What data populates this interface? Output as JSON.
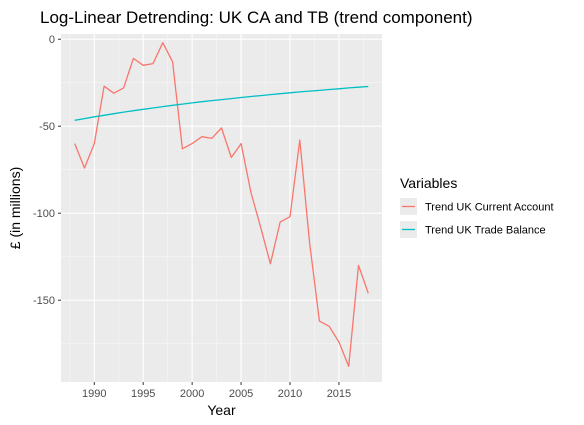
{
  "chart_data": {
    "type": "line",
    "title": "Log-Linear Detrending: UK CA and TB (trend component)",
    "xlabel": "Year",
    "ylabel": "£ (in millions)",
    "xlim": [
      1986.6,
      2019.4
    ],
    "ylim": [
      -197,
      3
    ],
    "x_ticks": [
      1990,
      1995,
      2000,
      2005,
      2010,
      2015
    ],
    "y_ticks": [
      0,
      -50,
      -100,
      -150
    ],
    "x_tick_labels": [
      "1990",
      "1995",
      "2000",
      "2005",
      "2010",
      "2015"
    ],
    "y_tick_labels": [
      "0",
      "-50",
      "-100",
      "-150"
    ],
    "grid": true,
    "legend": {
      "title": "Variables",
      "position": "right"
    },
    "x": [
      1988,
      1989,
      1990,
      1991,
      1992,
      1993,
      1994,
      1995,
      1996,
      1997,
      1998,
      1999,
      2000,
      2001,
      2002,
      2003,
      2004,
      2005,
      2006,
      2007,
      2008,
      2009,
      2010,
      2011,
      2012,
      2013,
      2014,
      2015,
      2016,
      2017,
      2018
    ],
    "series": [
      {
        "name": "Trend UK Current Account",
        "color": "#F8766D",
        "values": [
          -60,
          -74,
          -60,
          -27,
          -31,
          -28,
          -11,
          -15,
          -14,
          -2,
          -13,
          -63,
          -60,
          -56,
          -57,
          -51,
          -68,
          -60,
          -88,
          -108,
          -129,
          -105,
          -102,
          -58,
          -117,
          -162,
          -165,
          -174,
          -188,
          -130,
          -146
        ]
      },
      {
        "name": "Trend UK Trade Balance",
        "color": "#00BFC4",
        "values": [
          -46.6,
          -45.6,
          -44.6,
          -43.7,
          -42.8,
          -41.9,
          -41.1,
          -40.3,
          -39.5,
          -38.7,
          -38.0,
          -37.3,
          -36.6,
          -35.9,
          -35.3,
          -34.7,
          -34.1,
          -33.5,
          -32.9,
          -32.4,
          -31.8,
          -31.3,
          -30.8,
          -30.3,
          -29.8,
          -29.4,
          -28.9,
          -28.5,
          -28.0,
          -27.6,
          -27.2
        ]
      }
    ]
  }
}
